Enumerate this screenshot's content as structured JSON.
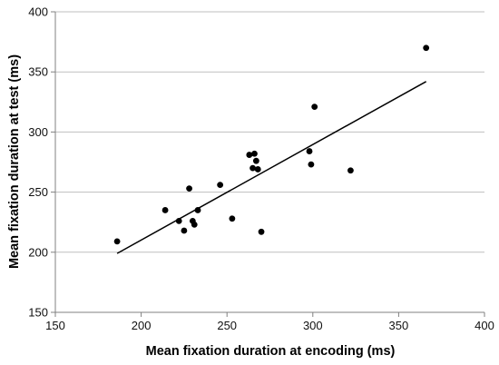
{
  "chart_data": {
    "type": "scatter",
    "title": "",
    "xlabel": "Mean fixation duration at encoding (ms)",
    "ylabel": "Mean fixation duration at test (ms)",
    "xlim": [
      150,
      400
    ],
    "ylim": [
      150,
      400
    ],
    "xticks": [
      150,
      200,
      250,
      300,
      350,
      400
    ],
    "yticks": [
      150,
      200,
      250,
      300,
      350,
      400
    ],
    "xtick_labels": [
      "150",
      "200",
      "250",
      "300",
      "350",
      "400"
    ],
    "ytick_labels": [
      "150",
      "200",
      "250",
      "300",
      "350",
      "400"
    ],
    "grid": "horizontal",
    "legend": "none",
    "point_color": "#000000",
    "gridline_color": "#bfbfbf",
    "points": [
      {
        "x": 186,
        "y": 209
      },
      {
        "x": 214,
        "y": 235
      },
      {
        "x": 222,
        "y": 226
      },
      {
        "x": 225,
        "y": 218
      },
      {
        "x": 228,
        "y": 253
      },
      {
        "x": 230,
        "y": 226
      },
      {
        "x": 231,
        "y": 223
      },
      {
        "x": 233,
        "y": 235
      },
      {
        "x": 246,
        "y": 256
      },
      {
        "x": 253,
        "y": 228
      },
      {
        "x": 263,
        "y": 281
      },
      {
        "x": 265,
        "y": 270
      },
      {
        "x": 266,
        "y": 282
      },
      {
        "x": 267,
        "y": 276
      },
      {
        "x": 268,
        "y": 269
      },
      {
        "x": 270,
        "y": 217
      },
      {
        "x": 298,
        "y": 284
      },
      {
        "x": 299,
        "y": 273
      },
      {
        "x": 301,
        "y": 321
      },
      {
        "x": 322,
        "y": 268
      },
      {
        "x": 366,
        "y": 370
      }
    ],
    "trendline": {
      "x": [
        186,
        366
      ],
      "y": [
        199,
        342
      ]
    }
  }
}
